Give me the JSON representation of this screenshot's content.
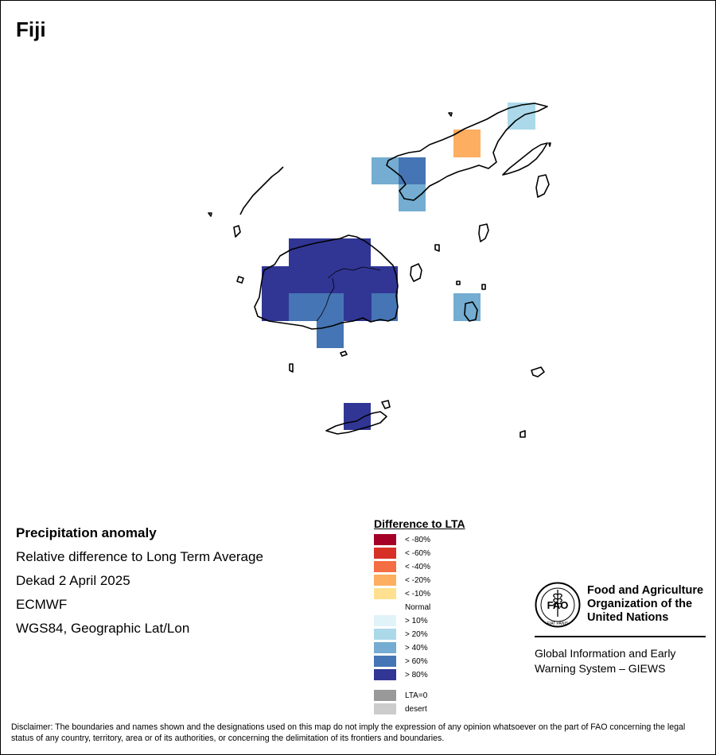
{
  "title": "Fiji",
  "info": {
    "heading": "Precipitation anomaly",
    "line1": "Relative difference to Long Term Average",
    "line2": "Dekad 2 April 2025",
    "line3": "ECMWF",
    "line4": "WGS84, Geographic Lat/Lon"
  },
  "legend": {
    "title": "Difference to LTA",
    "items": [
      {
        "label": "< -80%",
        "color": "#a50026"
      },
      {
        "label": "< -60%",
        "color": "#d73027"
      },
      {
        "label": "< -40%",
        "color": "#f46d43"
      },
      {
        "label": "< -20%",
        "color": "#fdae61"
      },
      {
        "label": "< -10%",
        "color": "#fee090"
      },
      {
        "label": "Normal",
        "color": "#ffffff"
      },
      {
        "label": "> 10%",
        "color": "#e0f3f8"
      },
      {
        "label": "> 20%",
        "color": "#abd9e9"
      },
      {
        "label": "> 40%",
        "color": "#74add1"
      },
      {
        "label": "> 60%",
        "color": "#4575b4"
      },
      {
        "label": "> 80%",
        "color": "#313695"
      }
    ],
    "extra": [
      {
        "label": "LTA=0",
        "color": "#999999"
      },
      {
        "label": "desert",
        "color": "#cccccc"
      }
    ]
  },
  "logo": {
    "org_line1": "Food and Agriculture",
    "org_line2": "Organization of the",
    "org_line3": "United Nations",
    "giews_line1": "Global Information and Early",
    "giews_line2": "Warning System – GIEWS",
    "emblem_text": "FAO",
    "motto": "FIAT PANIS"
  },
  "disclaimer": "Disclaimer: The boundaries and names shown and the designations used on this map do not imply the expression of any opinion whatsoever on the part of FAO concerning the legal status of any country, territory, area or of its authorities, or concerning the delimitation of its frontiers and boundaries."
}
